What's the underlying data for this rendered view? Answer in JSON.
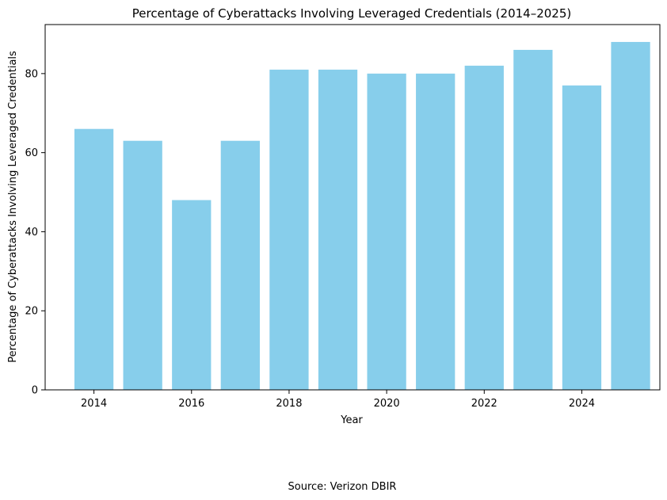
{
  "chart_data": {
    "type": "bar",
    "title": "Percentage of Cyberattacks Involving Leveraged Credentials (2014–2025)",
    "xlabel": "Year",
    "ylabel": "Percentage of Cyberattacks Involving Leveraged Credentials",
    "categories": [
      2014,
      2015,
      2016,
      2017,
      2018,
      2019,
      2020,
      2021,
      2022,
      2023,
      2024,
      2025
    ],
    "values": [
      66,
      63,
      48,
      63,
      81,
      81,
      80,
      80,
      82,
      86,
      77,
      88
    ],
    "xlim": [
      2013.0,
      2025.6
    ],
    "ylim": [
      0,
      92.4
    ],
    "x_ticks": [
      2014,
      2016,
      2018,
      2020,
      2022,
      2024
    ],
    "y_ticks": [
      0,
      20,
      40,
      60,
      80
    ],
    "bar_color": "#87CEEB",
    "grid": false,
    "legend": "none"
  },
  "caption": "Source: Verizon DBIR"
}
